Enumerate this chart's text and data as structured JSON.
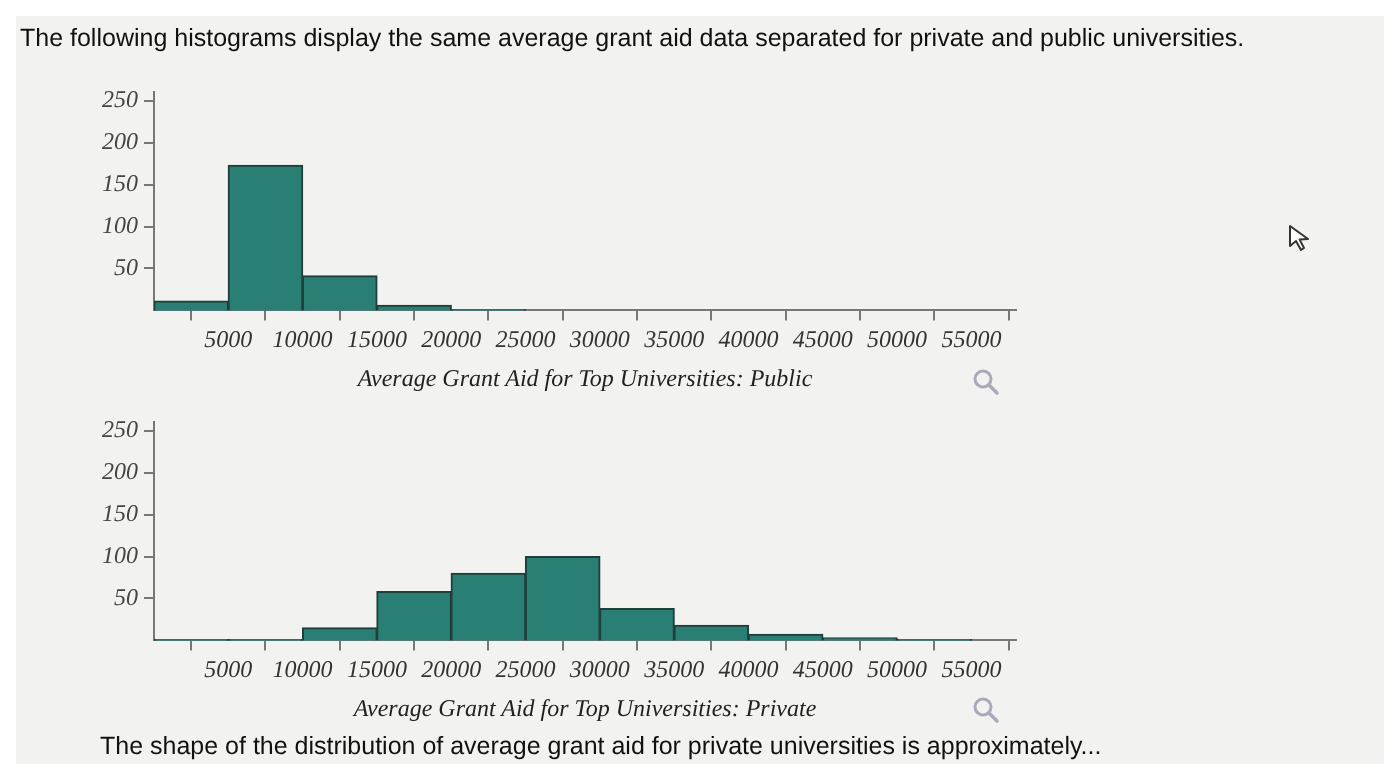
{
  "chart_data": [
    {
      "type": "histogram",
      "title": "The following histograms display the same average grant aid data separated for private and public universities.",
      "xlabel": "Average Grant Aid for Top Universities: Public",
      "color": "#2a7f74",
      "bins": [
        0,
        5000,
        10000,
        15000,
        20000,
        25000
      ],
      "values": [
        11,
        173,
        41,
        6,
        1
      ],
      "xlim": [
        0,
        58000
      ],
      "xticks": [
        5000,
        10000,
        15000,
        20000,
        25000,
        30000,
        35000,
        40000,
        45000,
        50000,
        55000
      ],
      "ylim": [
        0,
        260
      ],
      "yticks": [
        50,
        100,
        150,
        200,
        250
      ]
    },
    {
      "type": "histogram",
      "xlabel": "Average Grant Aid for Top Universities: Private",
      "color": "#2a7f74",
      "bins": [
        0,
        5000,
        10000,
        15000,
        20000,
        25000,
        30000,
        35000,
        40000,
        45000,
        50000,
        55000
      ],
      "values": [
        1,
        1,
        15,
        58,
        80,
        100,
        38,
        18,
        7,
        3,
        1
      ],
      "xlim": [
        0,
        58000
      ],
      "xticks": [
        5000,
        10000,
        15000,
        20000,
        25000,
        30000,
        35000,
        40000,
        45000,
        50000,
        55000
      ],
      "ylim": [
        0,
        260
      ],
      "yticks": [
        50,
        100,
        150,
        200,
        250
      ],
      "annotations": [
        "The shape of the distribution of average grant aid for private universities is approximately..."
      ]
    }
  ]
}
